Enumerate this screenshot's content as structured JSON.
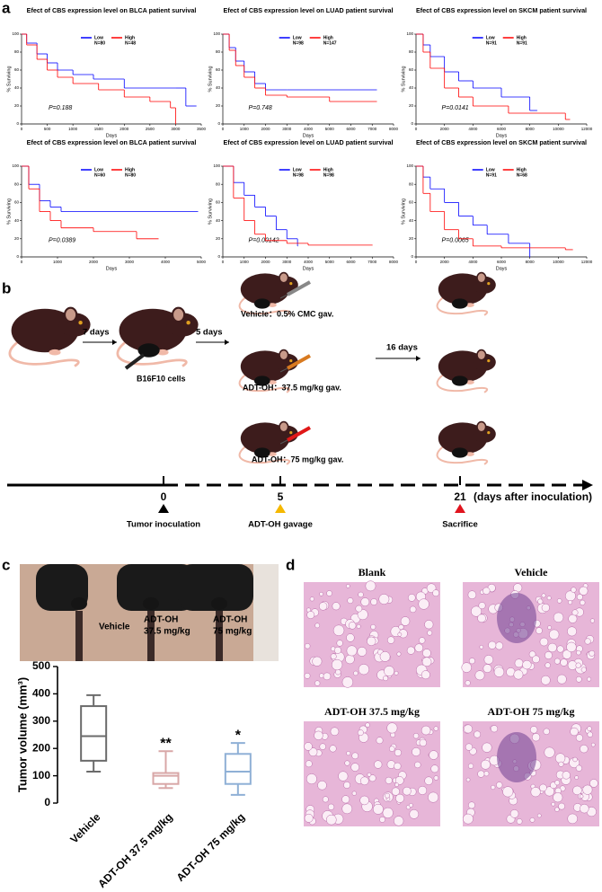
{
  "panels": [
    "a",
    "b",
    "c",
    "d"
  ],
  "chart_data": [
    {
      "type": "step",
      "title": "Efect of CBS expression level on BLCA patient survival",
      "xlabel": "Days",
      "ylabel": "% Surviving",
      "annotation": "P=0.188",
      "xlim": [
        0,
        3500
      ],
      "xticks": [
        0,
        500,
        1000,
        1500,
        2000,
        2500,
        3000,
        3500
      ],
      "ylim": [
        0,
        100
      ],
      "yticks": [
        0,
        20,
        40,
        60,
        80,
        100
      ],
      "series": [
        {
          "name": "Low",
          "n_label": "N=80",
          "color": "#0000ff",
          "x": [
            0,
            100,
            300,
            500,
            700,
            1000,
            1400,
            2000,
            3000,
            3200,
            3400
          ],
          "values": [
            100,
            90,
            78,
            68,
            60,
            55,
            50,
            40,
            40,
            20,
            20
          ]
        },
        {
          "name": "High",
          "n_label": "N=48",
          "color": "#ff0000",
          "x": [
            0,
            100,
            300,
            500,
            700,
            1000,
            1500,
            2000,
            2500,
            2900,
            3000
          ],
          "values": [
            100,
            88,
            72,
            60,
            52,
            45,
            38,
            30,
            25,
            18,
            0
          ]
        }
      ]
    },
    {
      "type": "step",
      "title": "Efect of CBS expression level on LUAD patient survival",
      "xlabel": "Days",
      "ylabel": "% Surviving",
      "annotation": "P=0.748",
      "xlim": [
        0,
        8000
      ],
      "xticks": [
        0,
        1000,
        2000,
        3000,
        4000,
        5000,
        6000,
        7000,
        8000
      ],
      "ylim": [
        0,
        100
      ],
      "yticks": [
        0,
        20,
        40,
        60,
        80,
        100
      ],
      "series": [
        {
          "name": "Low",
          "n_label": "N=98",
          "color": "#0000ff",
          "x": [
            0,
            300,
            600,
            1000,
            1500,
            2000,
            3000,
            7200
          ],
          "values": [
            100,
            85,
            70,
            58,
            45,
            38,
            38,
            38
          ]
        },
        {
          "name": "High",
          "n_label": "N=147",
          "color": "#ff0000",
          "x": [
            0,
            300,
            600,
            1000,
            1500,
            2000,
            3000,
            5000,
            7200
          ],
          "values": [
            100,
            82,
            65,
            52,
            40,
            32,
            30,
            25,
            25
          ]
        }
      ]
    },
    {
      "type": "step",
      "title": "Efect of CBS expression level on SKCM patient survival",
      "xlabel": "Days",
      "ylabel": "% Surviving",
      "annotation": "P=0.0141",
      "xlim": [
        0,
        12000
      ],
      "xticks": [
        0,
        2000,
        4000,
        6000,
        8000,
        10000,
        12000
      ],
      "ylim": [
        0,
        100
      ],
      "yticks": [
        0,
        20,
        40,
        60,
        80,
        100
      ],
      "series": [
        {
          "name": "Low",
          "n_label": "N=91",
          "color": "#0000ff",
          "x": [
            0,
            500,
            1000,
            2000,
            3000,
            4000,
            6000,
            8000,
            8500
          ],
          "values": [
            100,
            88,
            75,
            58,
            48,
            40,
            30,
            15,
            15
          ]
        },
        {
          "name": "High",
          "n_label": "N=91",
          "color": "#ff0000",
          "x": [
            0,
            500,
            1000,
            2000,
            3000,
            4000,
            6500,
            10500,
            10800
          ],
          "values": [
            100,
            80,
            62,
            40,
            30,
            20,
            12,
            5,
            5
          ]
        }
      ]
    },
    {
      "type": "step",
      "title": "Efect of CBS expression level on BLCA patient survival",
      "xlabel": "Days",
      "ylabel": "% Surviving",
      "annotation": "P=0.0389",
      "xlim": [
        0,
        5000
      ],
      "xticks": [
        0,
        1000,
        2000,
        3000,
        4000,
        5000
      ],
      "ylim": [
        0,
        100
      ],
      "yticks": [
        0,
        20,
        40,
        60,
        80,
        100
      ],
      "series": [
        {
          "name": "Low",
          "n_label": "N=60",
          "color": "#0000ff",
          "x": [
            0,
            200,
            500,
            800,
            1100,
            2000,
            4900
          ],
          "values": [
            100,
            80,
            62,
            55,
            50,
            50,
            50
          ]
        },
        {
          "name": "High",
          "n_label": "N=80",
          "color": "#ff0000",
          "x": [
            0,
            200,
            500,
            800,
            1100,
            2000,
            3200,
            3800
          ],
          "values": [
            100,
            75,
            50,
            40,
            32,
            28,
            20,
            20
          ]
        }
      ]
    },
    {
      "type": "step",
      "title": "Efect of CBS expression level on LUAD patient survival",
      "xlabel": "Days",
      "ylabel": "% Surviving",
      "annotation": "P=0.00142",
      "xlim": [
        0,
        8000
      ],
      "xticks": [
        0,
        1000,
        2000,
        3000,
        4000,
        5000,
        6000,
        7000,
        8000
      ],
      "ylim": [
        0,
        100
      ],
      "yticks": [
        0,
        20,
        40,
        60,
        80,
        100
      ],
      "series": [
        {
          "name": "Low",
          "n_label": "N=98",
          "color": "#0000ff",
          "x": [
            0,
            500,
            1000,
            1500,
            2000,
            2500,
            3000,
            3500
          ],
          "values": [
            100,
            82,
            68,
            55,
            45,
            30,
            20,
            12
          ]
        },
        {
          "name": "High",
          "n_label": "N=98",
          "color": "#ff0000",
          "x": [
            0,
            500,
            1000,
            1500,
            2000,
            3000,
            4000,
            7000
          ],
          "values": [
            100,
            65,
            40,
            25,
            18,
            15,
            13,
            13
          ]
        }
      ]
    },
    {
      "type": "step",
      "title": "Efect of CBS expression level on SKCM patient survival",
      "xlabel": "Days",
      "ylabel": "% Surviving",
      "annotation": "P=0.0065",
      "xlim": [
        0,
        12000
      ],
      "xticks": [
        0,
        2000,
        4000,
        6000,
        8000,
        10000,
        12000
      ],
      "ylim": [
        0,
        100
      ],
      "yticks": [
        0,
        20,
        40,
        60,
        80,
        100
      ],
      "series": [
        {
          "name": "Low",
          "n_label": "N=91",
          "color": "#0000ff",
          "x": [
            0,
            500,
            1000,
            2000,
            3000,
            4000,
            5000,
            6500,
            8000
          ],
          "values": [
            100,
            88,
            75,
            60,
            45,
            35,
            25,
            15,
            0
          ]
        },
        {
          "name": "High",
          "n_label": "N=68",
          "color": "#ff0000",
          "x": [
            0,
            500,
            1000,
            2000,
            3000,
            4000,
            6000,
            10500,
            11000
          ],
          "values": [
            100,
            70,
            50,
            30,
            20,
            12,
            10,
            8,
            8
          ]
        }
      ]
    },
    {
      "type": "box",
      "ylabel": "Tumor volume (mm³)",
      "categories": [
        "Vehicle",
        "ADT-OH 37.5 mg/kg",
        "ADT-OH 75 mg/kg"
      ],
      "ylim": [
        0,
        500
      ],
      "yticks": [
        0,
        100,
        200,
        300,
        400,
        500
      ],
      "min": [
        115,
        55,
        30
      ],
      "q1": [
        155,
        70,
        70
      ],
      "median": [
        245,
        100,
        115
      ],
      "q3": [
        355,
        110,
        180
      ],
      "max": [
        395,
        190,
        220
      ],
      "colors": [
        "#6b6b6b",
        "#d8a7a7",
        "#8fb0d6"
      ],
      "significance": [
        null,
        "**",
        "*"
      ]
    }
  ],
  "schematic": {
    "intervals": [
      "7 days",
      "5 days",
      "16 days"
    ],
    "cells": "B16F10 cells",
    "groups": [
      "Vehicle：0.5% CMC gav.",
      "ADT-OH：37.5 mg/kg gav.",
      "ADT-OH：75 mg/kg gav."
    ],
    "timeline": {
      "ticks": [
        "0",
        "5",
        "21"
      ],
      "unit": "(days after inoculation)",
      "events": [
        "Tumor inoculation",
        "ADT-OH gavage",
        "Sacrifice"
      ]
    }
  },
  "photo": {
    "labels": [
      [
        "Vehicle"
      ],
      [
        "ADT-OH",
        "37.5 mg/kg"
      ],
      [
        "ADT-OH",
        "75 mg/kg"
      ]
    ]
  },
  "histology": {
    "labels": [
      "Blank",
      "Vehicle",
      "ADT-OH 37.5 mg/kg",
      "ADT-OH 75 mg/kg"
    ]
  }
}
